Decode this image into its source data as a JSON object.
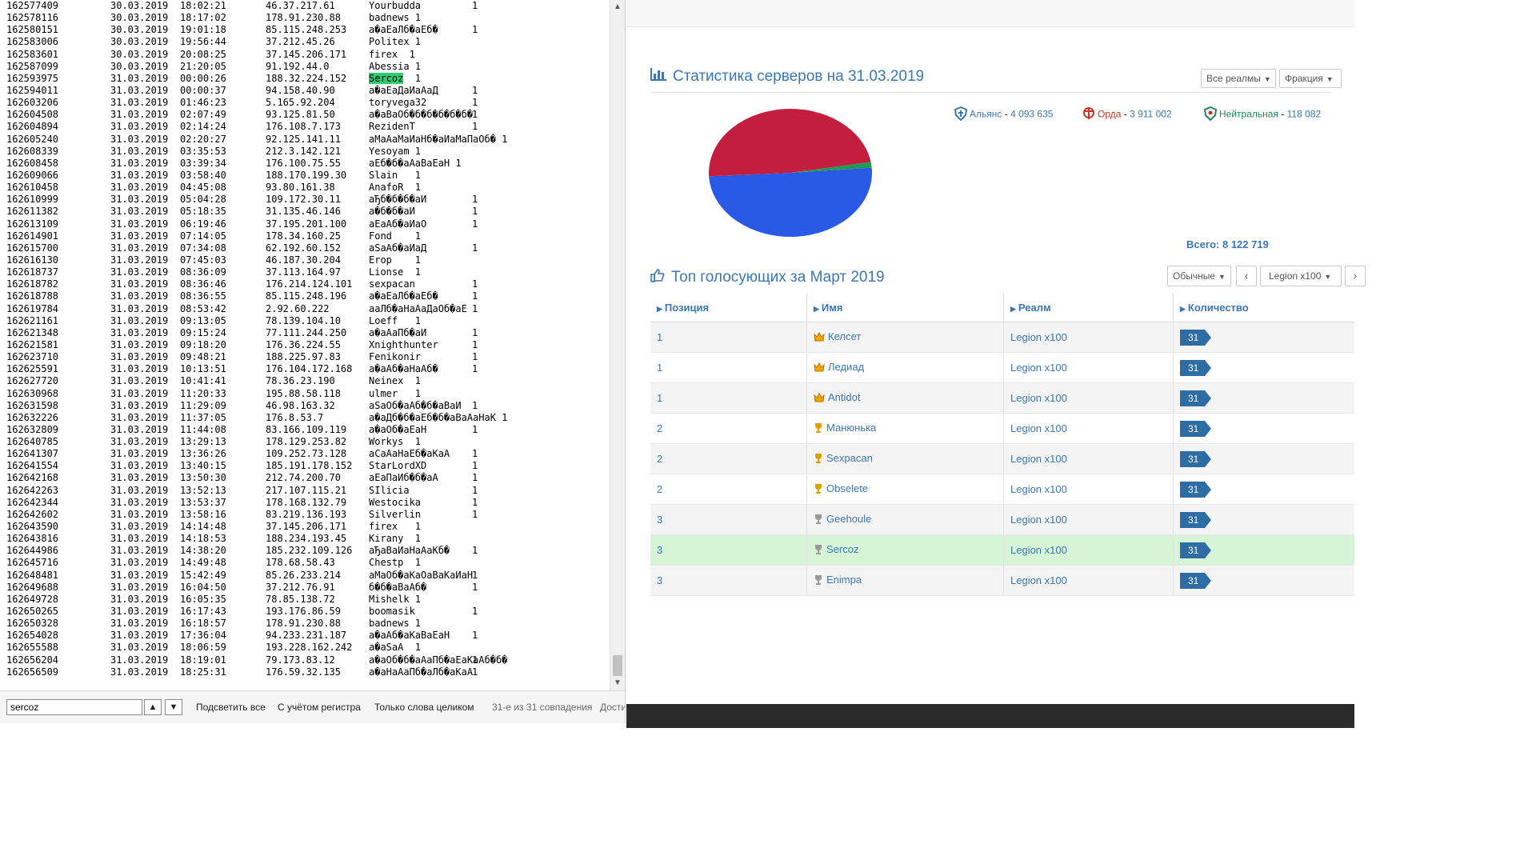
{
  "viewer": {
    "rows": [
      [
        "162577409",
        "30.03.2019",
        "18:02:21",
        "46.37.217.61",
        "Yourbudda",
        "1"
      ],
      [
        "162578116",
        "30.03.2019",
        "18:17:02",
        "178.91.230.88",
        "badnews 1",
        ""
      ],
      [
        "162580151",
        "30.03.2019",
        "19:01:18",
        "85.115.248.253",
        "а�аЕаЛб�аЕб�",
        "1"
      ],
      [
        "162583006",
        "30.03.2019",
        "19:56:44",
        "37.212.45.26",
        "Politex 1",
        ""
      ],
      [
        "162583601",
        "30.03.2019",
        "20:08:25",
        "37.145.206.171",
        "firex  1",
        ""
      ],
      [
        "162587099",
        "30.03.2019",
        "21:20:05",
        "91.192.44.0",
        "Abessia 1",
        ""
      ],
      [
        "162593975",
        "31.03.2019",
        "00:00:26",
        "188.32.224.152",
        "Sercoz  1",
        ""
      ],
      [
        "162594011",
        "31.03.2019",
        "00:00:37",
        "94.158.40.90",
        "а�аЕаДаИаАаД",
        "1"
      ],
      [
        "162603206",
        "31.03.2019",
        "01:46:23",
        "5.165.92.204",
        "toryvega32",
        "1"
      ],
      [
        "162604508",
        "31.03.2019",
        "02:07:49",
        "93.125.81.50",
        "а�аВаОб�б�б�б�б�б�",
        "1"
      ],
      [
        "162604894",
        "31.03.2019",
        "02:14:24",
        "176.108.7.173",
        "RezidenT",
        "1"
      ],
      [
        "162605240",
        "31.03.2019",
        "02:20:27",
        "92.125.141.11",
        "аМаАаМаИаНб�аИаМаПаОб� 1",
        ""
      ],
      [
        "162608339",
        "31.03.2019",
        "03:35:53",
        "212.3.142.121",
        "Yesoyam 1",
        ""
      ],
      [
        "162608458",
        "31.03.2019",
        "03:39:34",
        "176.100.75.55",
        "аЕб�б�аАаВаЕаН 1",
        ""
      ],
      [
        "162609066",
        "31.03.2019",
        "03:58:40",
        "188.170.199.30",
        "Slain   1",
        ""
      ],
      [
        "162610458",
        "31.03.2019",
        "04:45:08",
        "93.80.161.38",
        "AnafoR  1",
        ""
      ],
      [
        "162610999",
        "31.03.2019",
        "05:04:28",
        "109.172.30.11",
        "аЂб�б�б�аИ",
        "1"
      ],
      [
        "162611382",
        "31.03.2019",
        "05:18:35",
        "31.135.46.146",
        "а�б�б�аИ",
        "1"
      ],
      [
        "162613109",
        "31.03.2019",
        "06:19:46",
        "37.195.201.100",
        "аЕаАб�аИаО",
        "1"
      ],
      [
        "162614901",
        "31.03.2019",
        "07:14:05",
        "178.34.160.25",
        "Fond    1",
        ""
      ],
      [
        "162615700",
        "31.03.2019",
        "07:34:08",
        "62.192.60.152",
        "аЅаАб�аИаД",
        "1"
      ],
      [
        "162616130",
        "31.03.2019",
        "07:45:03",
        "46.187.30.204",
        "Erop    1",
        ""
      ],
      [
        "162618737",
        "31.03.2019",
        "08:36:09",
        "37.113.164.97",
        "Lionse  1",
        ""
      ],
      [
        "162618782",
        "31.03.2019",
        "08:36:46",
        "176.214.124.101",
        "sexpacan",
        "1"
      ],
      [
        "162618788",
        "31.03.2019",
        "08:36:55",
        "85.115.248.196",
        "а�аЕаЛб�аЕб�",
        "1"
      ],
      [
        "162619784",
        "31.03.2019",
        "08:53:42",
        "2.92.60.222",
        "ааЛб�аНаАаДаОб�аЕ",
        "1"
      ],
      [
        "162621161",
        "31.03.2019",
        "09:13:05",
        "78.139.104.10",
        "Loeff   1",
        ""
      ],
      [
        "162621348",
        "31.03.2019",
        "09:15:24",
        "77.111.244.250",
        "а�аАаПб�аИ",
        "1"
      ],
      [
        "162621581",
        "31.03.2019",
        "09:18:20",
        "176.36.224.55",
        "Xnighthunter",
        "1"
      ],
      [
        "162623710",
        "31.03.2019",
        "09:48:21",
        "188.225.97.83",
        "Fenikonir",
        "1"
      ],
      [
        "162625591",
        "31.03.2019",
        "10:13:51",
        "176.104.172.168",
        "а�аАб�аНаАб�",
        "1"
      ],
      [
        "162627720",
        "31.03.2019",
        "10:41:41",
        "78.36.23.190",
        "Neinex  1",
        ""
      ],
      [
        "162630968",
        "31.03.2019",
        "11:20:33",
        "195.88.58.118",
        "ulmer   1",
        ""
      ],
      [
        "162631598",
        "31.03.2019",
        "11:29:09",
        "46.98.163.32",
        "аЅаОб�аАб�б�аВаИ",
        "1"
      ],
      [
        "162632226",
        "31.03.2019",
        "11:37:05",
        "176.8.53.7",
        "а�аДб�б�аЕб�б�аВаАаНаК 1",
        ""
      ],
      [
        "162632809",
        "31.03.2019",
        "11:44:08",
        "83.166.109.119",
        "а�аОб�аЕаН",
        "1"
      ],
      [
        "162640785",
        "31.03.2019",
        "13:29:13",
        "178.129.253.82",
        "Workys  1",
        ""
      ],
      [
        "162641307",
        "31.03.2019",
        "13:36:26",
        "109.252.73.128",
        "аСаАаНаЕб�аКаА",
        "1"
      ],
      [
        "162641554",
        "31.03.2019",
        "13:40:15",
        "185.191.178.152",
        "StarLordXD",
        "1"
      ],
      [
        "162642168",
        "31.03.2019",
        "13:50:30",
        "212.74.200.70",
        "аЕаПаИб�б�аА",
        "1"
      ],
      [
        "162642263",
        "31.03.2019",
        "13:52:13",
        "217.107.115.21",
        "SIlicia",
        "1"
      ],
      [
        "162642344",
        "31.03.2019",
        "13:53:37",
        "178.168.132.79",
        "Westocika",
        "1"
      ],
      [
        "162642602",
        "31.03.2019",
        "13:58:16",
        "83.219.136.193",
        "Silverlin",
        "1"
      ],
      [
        "162643590",
        "31.03.2019",
        "14:14:48",
        "37.145.206.171",
        "firex   1",
        ""
      ],
      [
        "162643816",
        "31.03.2019",
        "14:18:53",
        "188.234.193.45",
        "Kirany  1",
        ""
      ],
      [
        "162644986",
        "31.03.2019",
        "14:38:20",
        "185.232.109.126",
        "аЂаВаИаНаАаКб�",
        "1"
      ],
      [
        "162645716",
        "31.03.2019",
        "14:49:48",
        "178.68.58.43",
        "Chestp  1",
        ""
      ],
      [
        "162648481",
        "31.03.2019",
        "15:42:49",
        "85.26.233.214",
        "аМаОб�аКаОаВаКаИаН",
        "1"
      ],
      [
        "162649688",
        "31.03.2019",
        "16:04:50",
        "37.212.76.91",
        "б�б�аВаАб�",
        "1"
      ],
      [
        "162649728",
        "31.03.2019",
        "16:05:35",
        "78.85.138.72",
        "Mishelk 1",
        ""
      ],
      [
        "162650265",
        "31.03.2019",
        "16:17:43",
        "193.176.86.59",
        "boomasik",
        "1"
      ],
      [
        "162650328",
        "31.03.2019",
        "16:18:57",
        "178.91.230.88",
        "badnews 1",
        ""
      ],
      [
        "162654028",
        "31.03.2019",
        "17:36:04",
        "94.233.231.187",
        "а�аАб�аКаВаЕаН",
        "1"
      ],
      [
        "162655588",
        "31.03.2019",
        "18:06:59",
        "193.228.162.242",
        "а�аЅаА  1",
        ""
      ],
      [
        "162656204",
        "31.03.2019",
        "18:19:01",
        "79.173.83.12",
        "а�аОб�б�аАаПб�аЕаКаАб�б�",
        "1"
      ],
      [
        "162656509",
        "31.03.2019",
        "18:25:31",
        "176.59.32.135",
        "а�аНаАаПб�аЛб�аКаА",
        "1"
      ]
    ],
    "highlight_row": 6,
    "highlight_text": "Sercoz",
    "find": {
      "value": "sercoz",
      "highlight_all": "Подсветить все",
      "match_case": "С учётом регистра",
      "whole_words": "Только слова целиком",
      "status": "31-е из 31 совпадения",
      "cut_text": "Дости"
    }
  },
  "stats": {
    "title": "Статистика серверов на 31.03.2019",
    "realm_dropdown": "Все реалмы",
    "faction_dropdown": "Фракция",
    "factions": [
      {
        "name": "Альянс",
        "value": "4 093 635",
        "color": "#3a77b4"
      },
      {
        "name": "Орда",
        "value": "3 911 002",
        "color": "#c0392b"
      },
      {
        "name": "Нейтральная",
        "value": "118 082",
        "color": "#1b8a5a"
      }
    ],
    "pie_values": [
      4093635,
      3911002,
      118082
    ],
    "pie_colors": [
      "#2a59e6",
      "#c31e3d",
      "#1f9a55"
    ],
    "total_label": "Всего: 8 122 719"
  },
  "top": {
    "title": "Топ голосующих за Март 2019",
    "mode_dropdown": "Обычные",
    "realm_dropdown": "Legion x100",
    "prev": "‹",
    "next": "›",
    "headers": [
      "Позиция",
      "Имя",
      "Реалм",
      "Количество"
    ],
    "rows": [
      {
        "pos": "1",
        "name": "Келсет",
        "realm": "Legion x100",
        "count": "31",
        "rank": "crown"
      },
      {
        "pos": "1",
        "name": "Ледиад",
        "realm": "Legion x100",
        "count": "31",
        "rank": "crown"
      },
      {
        "pos": "1",
        "name": "Antidot",
        "realm": "Legion x100",
        "count": "31",
        "rank": "crown"
      },
      {
        "pos": "2",
        "name": "Манюнька",
        "realm": "Legion x100",
        "count": "31",
        "rank": "cup-gold"
      },
      {
        "pos": "2",
        "name": "Sexpacan",
        "realm": "Legion x100",
        "count": "31",
        "rank": "cup-gold"
      },
      {
        "pos": "2",
        "name": "Obselete",
        "realm": "Legion x100",
        "count": "31",
        "rank": "cup-gold"
      },
      {
        "pos": "3",
        "name": "Geehoule",
        "realm": "Legion x100",
        "count": "31",
        "rank": "cup-silver"
      },
      {
        "pos": "3",
        "name": "Sercoz",
        "realm": "Legion x100",
        "count": "31",
        "rank": "cup-silver"
      },
      {
        "pos": "3",
        "name": "Enimpa",
        "realm": "Legion x100",
        "count": "31",
        "rank": "cup-silver"
      }
    ],
    "highlight_row": 7
  }
}
